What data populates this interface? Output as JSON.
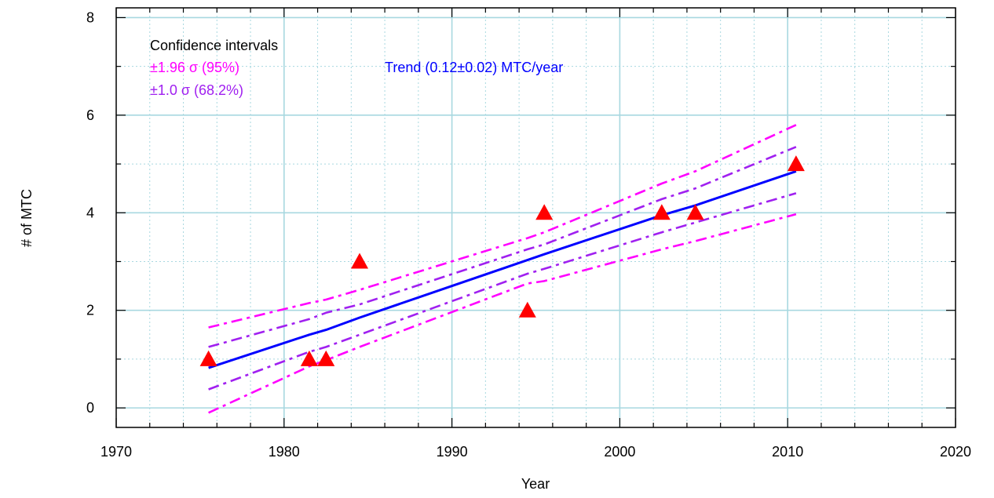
{
  "chart_data": {
    "type": "scatter",
    "xlabel": "Year",
    "ylabel": "# of MTC",
    "xlim": [
      1970,
      2020
    ],
    "ylim": [
      -0.4,
      8.2
    ],
    "x_ticks": [
      1970,
      1980,
      1990,
      2000,
      2010,
      2020
    ],
    "y_ticks": [
      0,
      2,
      4,
      6,
      8
    ],
    "x_tick_labels": [
      "1970",
      "1980",
      "1990",
      "2000",
      "2010",
      "2020"
    ],
    "y_tick_labels": [
      "0",
      "2",
      "4",
      "6",
      "8"
    ],
    "x_minor_step": 2,
    "y_minor_step": 1,
    "grid": true,
    "legend_title": "Confidence intervals",
    "legend_items": [
      {
        "label": "±1.96 σ (95%)",
        "color": "#ff00ff"
      },
      {
        "label": "±1.0 σ (68.2%)",
        "color": "#a020f0"
      }
    ],
    "trend_label": "Trend (0.12±0.02) MTC/year",
    "series": [
      {
        "kind": "points",
        "marker": "triangle",
        "color": "#ff0000",
        "points": [
          [
            1975.5,
            1
          ],
          [
            1981.5,
            1
          ],
          [
            1982.5,
            1
          ],
          [
            1984.5,
            3
          ],
          [
            1994.5,
            2
          ],
          [
            1995.5,
            4
          ],
          [
            2002.5,
            4
          ],
          [
            2004.5,
            4
          ],
          [
            2010.5,
            5
          ]
        ]
      },
      {
        "kind": "line",
        "style": "solid",
        "color": "#0000ff",
        "points": [
          [
            1975.5,
            0.82
          ],
          [
            1981.5,
            1.5
          ],
          [
            1982.5,
            1.6
          ],
          [
            1984.5,
            1.85
          ],
          [
            1994.5,
            3.03
          ],
          [
            1995.5,
            3.15
          ],
          [
            2002.5,
            3.95
          ],
          [
            2004.5,
            4.15
          ],
          [
            2010.5,
            4.85
          ]
        ]
      },
      {
        "kind": "line",
        "style": "dashdot",
        "color": "#a020f0",
        "points": [
          [
            1975.5,
            1.25
          ],
          [
            1981.5,
            1.82
          ],
          [
            1982.5,
            1.95
          ],
          [
            1984.5,
            2.12
          ],
          [
            1994.5,
            3.25
          ],
          [
            1995.5,
            3.35
          ],
          [
            2002.5,
            4.28
          ],
          [
            2004.5,
            4.5
          ],
          [
            2010.5,
            5.35
          ]
        ]
      },
      {
        "kind": "line",
        "style": "dashdot",
        "color": "#a020f0",
        "points": [
          [
            1975.5,
            0.38
          ],
          [
            1981.5,
            1.15
          ],
          [
            1982.5,
            1.25
          ],
          [
            1984.5,
            1.5
          ],
          [
            1994.5,
            2.75
          ],
          [
            1995.5,
            2.85
          ],
          [
            2002.5,
            3.6
          ],
          [
            2004.5,
            3.8
          ],
          [
            2010.5,
            4.4
          ]
        ]
      },
      {
        "kind": "line",
        "style": "dashdot",
        "color": "#ff00ff",
        "points": [
          [
            1975.5,
            1.65
          ],
          [
            1981.5,
            2.15
          ],
          [
            1982.5,
            2.22
          ],
          [
            1984.5,
            2.42
          ],
          [
            1994.5,
            3.48
          ],
          [
            1995.5,
            3.6
          ],
          [
            2002.5,
            4.6
          ],
          [
            2004.5,
            4.85
          ],
          [
            2010.5,
            5.8
          ]
        ]
      },
      {
        "kind": "line",
        "style": "dashdot",
        "color": "#ff00ff",
        "points": [
          [
            1975.5,
            -0.1
          ],
          [
            1981.5,
            0.85
          ],
          [
            1982.5,
            0.98
          ],
          [
            1984.5,
            1.25
          ],
          [
            1994.5,
            2.55
          ],
          [
            1995.5,
            2.6
          ],
          [
            2002.5,
            3.25
          ],
          [
            2004.5,
            3.42
          ],
          [
            2010.5,
            3.97
          ]
        ]
      }
    ]
  }
}
